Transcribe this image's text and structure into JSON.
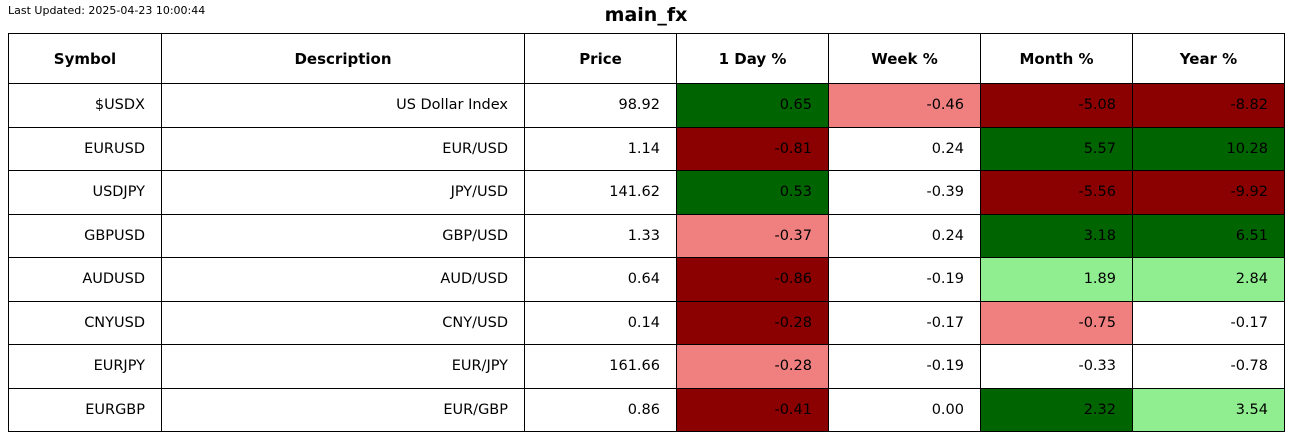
{
  "header": {
    "last_updated": "Last Updated: 2025-04-23 10:00:44",
    "title": "main_fx"
  },
  "colors": {
    "strong_gain": "#006400",
    "mild_gain": "#90EE90",
    "strong_loss": "#8B0000",
    "mild_loss": "#F08080",
    "neutral": "#FFFFFF",
    "border": "#000000",
    "text": "#000000"
  },
  "table": {
    "columns": [
      "Symbol",
      "Description",
      "Price",
      "1 Day %",
      "Week %",
      "Month %",
      "Year %"
    ],
    "rows": [
      {
        "symbol": "$USDX",
        "description": "US Dollar Index",
        "price": "98.92",
        "changes": [
          {
            "value": "0.65",
            "color": "strong_gain"
          },
          {
            "value": "-0.46",
            "color": "mild_loss"
          },
          {
            "value": "-5.08",
            "color": "strong_loss"
          },
          {
            "value": "-8.82",
            "color": "strong_loss"
          }
        ]
      },
      {
        "symbol": "EURUSD",
        "description": "EUR/USD",
        "price": "1.14",
        "changes": [
          {
            "value": "-0.81",
            "color": "strong_loss"
          },
          {
            "value": "0.24",
            "color": "neutral"
          },
          {
            "value": "5.57",
            "color": "strong_gain"
          },
          {
            "value": "10.28",
            "color": "strong_gain"
          }
        ]
      },
      {
        "symbol": "USDJPY",
        "description": "JPY/USD",
        "price": "141.62",
        "changes": [
          {
            "value": "0.53",
            "color": "strong_gain"
          },
          {
            "value": "-0.39",
            "color": "neutral"
          },
          {
            "value": "-5.56",
            "color": "strong_loss"
          },
          {
            "value": "-9.92",
            "color": "strong_loss"
          }
        ]
      },
      {
        "symbol": "GBPUSD",
        "description": "GBP/USD",
        "price": "1.33",
        "changes": [
          {
            "value": "-0.37",
            "color": "mild_loss"
          },
          {
            "value": "0.24",
            "color": "neutral"
          },
          {
            "value": "3.18",
            "color": "strong_gain"
          },
          {
            "value": "6.51",
            "color": "strong_gain"
          }
        ]
      },
      {
        "symbol": "AUDUSD",
        "description": "AUD/USD",
        "price": "0.64",
        "changes": [
          {
            "value": "-0.86",
            "color": "strong_loss"
          },
          {
            "value": "-0.19",
            "color": "neutral"
          },
          {
            "value": "1.89",
            "color": "mild_gain"
          },
          {
            "value": "2.84",
            "color": "mild_gain"
          }
        ]
      },
      {
        "symbol": "CNYUSD",
        "description": "CNY/USD",
        "price": "0.14",
        "changes": [
          {
            "value": "-0.28",
            "color": "strong_loss"
          },
          {
            "value": "-0.17",
            "color": "neutral"
          },
          {
            "value": "-0.75",
            "color": "mild_loss"
          },
          {
            "value": "-0.17",
            "color": "neutral"
          }
        ]
      },
      {
        "symbol": "EURJPY",
        "description": "EUR/JPY",
        "price": "161.66",
        "changes": [
          {
            "value": "-0.28",
            "color": "mild_loss"
          },
          {
            "value": "-0.19",
            "color": "neutral"
          },
          {
            "value": "-0.33",
            "color": "neutral"
          },
          {
            "value": "-0.78",
            "color": "neutral"
          }
        ]
      },
      {
        "symbol": "EURGBP",
        "description": "EUR/GBP",
        "price": "0.86",
        "changes": [
          {
            "value": "-0.41",
            "color": "strong_loss"
          },
          {
            "value": "0.00",
            "color": "neutral"
          },
          {
            "value": "2.32",
            "color": "strong_gain"
          },
          {
            "value": "3.54",
            "color": "mild_gain"
          }
        ]
      }
    ]
  },
  "chart_data": {
    "type": "table",
    "title": "main_fx",
    "subtitle": "Last Updated: 2025-04-23 10:00:44",
    "columns": [
      "Symbol",
      "Description",
      "Price",
      "1 Day %",
      "Week %",
      "Month %",
      "Year %"
    ],
    "rows": [
      [
        "$USDX",
        "US Dollar Index",
        98.92,
        0.65,
        -0.46,
        -5.08,
        -8.82
      ],
      [
        "EURUSD",
        "EUR/USD",
        1.14,
        -0.81,
        0.24,
        5.57,
        10.28
      ],
      [
        "USDJPY",
        "JPY/USD",
        141.62,
        0.53,
        -0.39,
        -5.56,
        -9.92
      ],
      [
        "GBPUSD",
        "GBP/USD",
        1.33,
        -0.37,
        0.24,
        3.18,
        6.51
      ],
      [
        "AUDUSD",
        "AUD/USD",
        0.64,
        -0.86,
        -0.19,
        1.89,
        2.84
      ],
      [
        "CNYUSD",
        "CNY/USD",
        0.14,
        -0.28,
        -0.17,
        -0.75,
        -0.17
      ],
      [
        "EURJPY",
        "EUR/JPY",
        161.66,
        -0.28,
        -0.19,
        -0.33,
        -0.78
      ],
      [
        "EURGBP",
        "EUR/GBP",
        0.86,
        -0.41,
        0.0,
        2.32,
        3.54
      ]
    ],
    "layout_hints": {
      "color_coding": "percent cells shaded: strong gain dark green, mild gain light green, strong loss dark red, mild loss light coral, near-zero white",
      "grid": true,
      "header_bold": true,
      "numeric_alignment": "right"
    }
  }
}
